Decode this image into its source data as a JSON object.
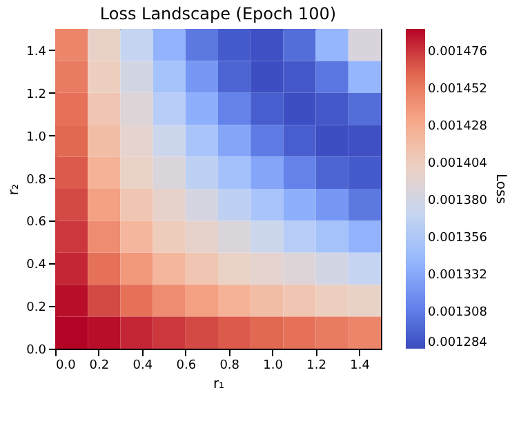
{
  "chart_data": {
    "type": "heatmap",
    "title": "Loss Landscape (Epoch 100)",
    "xlabel": "r₁",
    "ylabel": "r₂",
    "clabel": "Loss",
    "x": [
      0.075,
      0.225,
      0.375,
      0.525,
      0.675,
      0.825,
      0.975,
      1.125,
      1.275,
      1.425
    ],
    "y": [
      1.425,
      1.275,
      1.125,
      0.975,
      0.825,
      0.675,
      0.525,
      0.375,
      0.225,
      0.075
    ],
    "xlim": [
      0,
      1.5
    ],
    "xticks": [
      {
        "value": 0,
        "label": "0.0"
      },
      0.2,
      0.4,
      0.6,
      0.8,
      {
        "value": 1,
        "label": "1.0"
      },
      1.2,
      1.4
    ],
    "ylim": [
      0,
      1.5
    ],
    "yticks": [
      {
        "value": 0,
        "label": "0.0"
      },
      0.2,
      0.4,
      0.6,
      0.8,
      {
        "value": 1,
        "label": "1.0"
      },
      1.2,
      1.4
    ],
    "clim": [
      0.001284,
      0.00149
    ],
    "cticks": [
      0.001284,
      0.001308,
      0.001332,
      0.001356,
      {
        "value": 0.00138,
        "label": "0.001380"
      },
      0.001404,
      0.001428,
      0.001452,
      0.001476
    ],
    "grid": false,
    "cells": [
      [
        0.001447,
        0.001398,
        0.00137,
        0.001338,
        0.001306,
        0.001291,
        0.001286,
        0.0013,
        0.00134,
        0.001385
      ],
      [
        0.001452,
        0.001403,
        0.00138,
        0.00135,
        0.001322,
        0.001296,
        0.001285,
        0.00129,
        0.001305,
        0.00134
      ],
      [
        0.001457,
        0.00141,
        0.001388,
        0.001361,
        0.001336,
        0.001311,
        0.001293,
        0.001285,
        0.00129,
        0.0013
      ],
      [
        0.001461,
        0.001416,
        0.001394,
        0.001375,
        0.001352,
        0.00133,
        0.001307,
        0.001293,
        0.001285,
        0.001286
      ],
      [
        0.001465,
        0.001424,
        0.001399,
        0.001386,
        0.001366,
        0.001349,
        0.00133,
        0.001311,
        0.001296,
        0.001291
      ],
      [
        0.00147,
        0.001435,
        0.00141,
        0.001396,
        0.001382,
        0.001366,
        0.001352,
        0.001336,
        0.001322,
        0.001306
      ],
      [
        0.001475,
        0.001444,
        0.001421,
        0.001405,
        0.001396,
        0.001386,
        0.001375,
        0.001361,
        0.00135,
        0.001338
      ],
      [
        0.00148,
        0.001457,
        0.001438,
        0.001421,
        0.00141,
        0.001399,
        0.001394,
        0.001388,
        0.00138,
        0.00137
      ],
      [
        0.001487,
        0.00147,
        0.001457,
        0.001444,
        0.001435,
        0.001424,
        0.001416,
        0.00141,
        0.001403,
        0.001398
      ],
      [
        0.00149,
        0.001487,
        0.00148,
        0.001475,
        0.00147,
        0.001465,
        0.001461,
        0.001457,
        0.001452,
        0.001447
      ]
    ]
  }
}
